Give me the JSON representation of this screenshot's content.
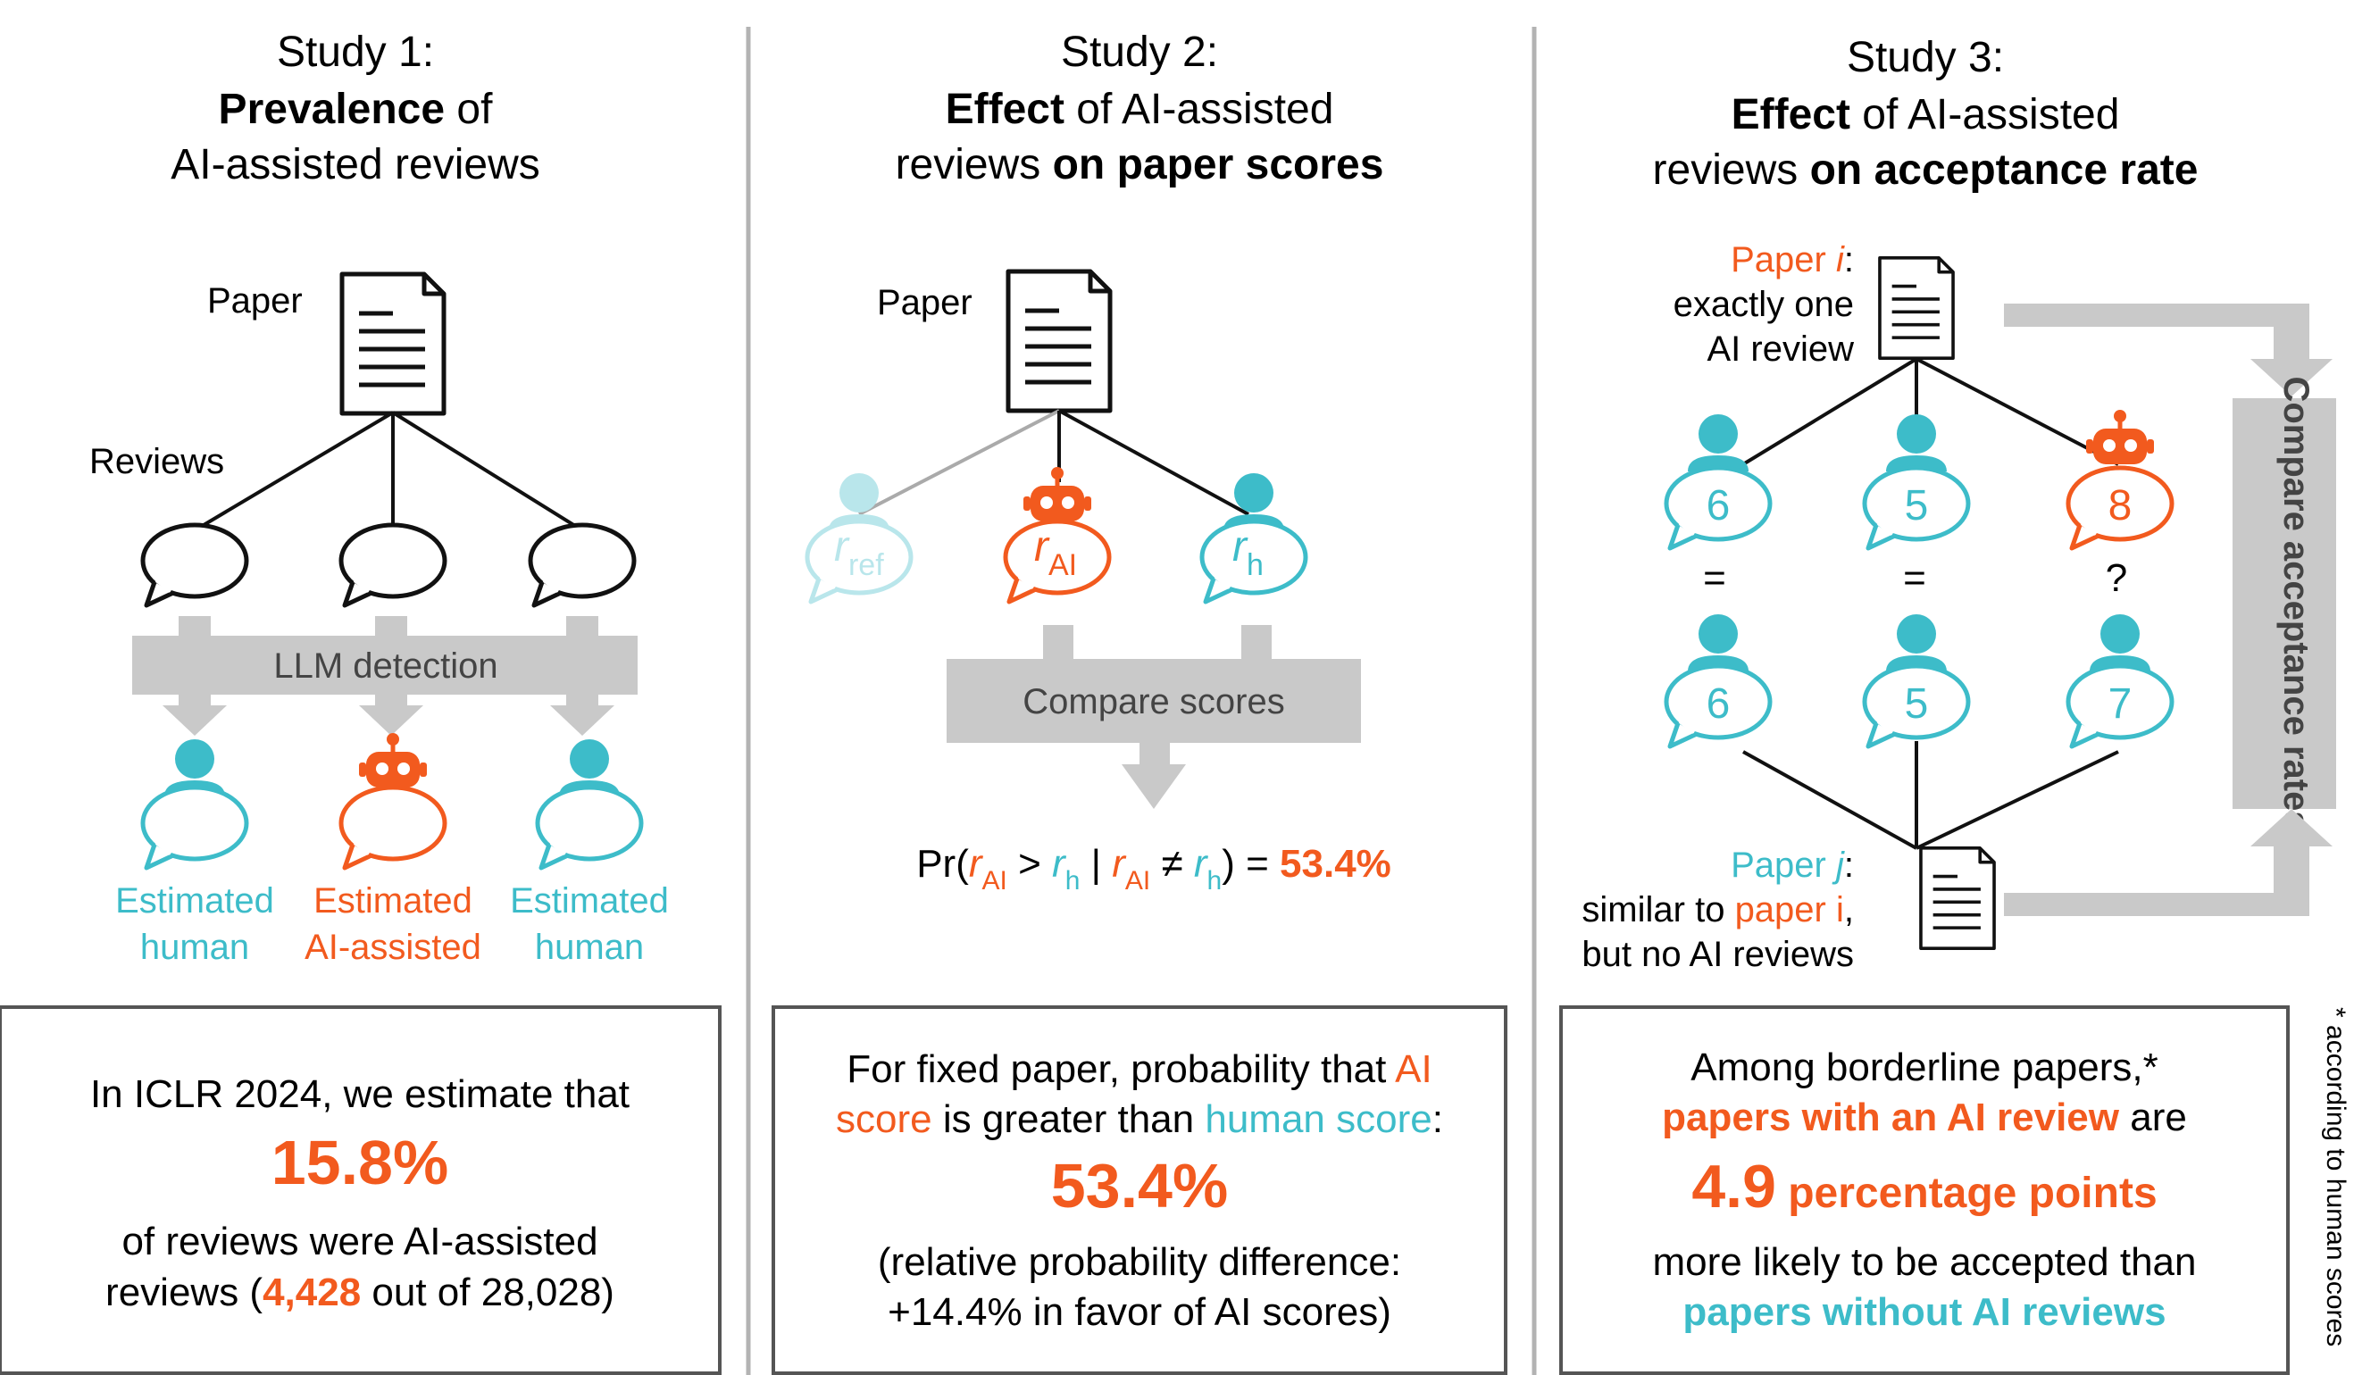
{
  "colors": {
    "teal": "#3dbcc9",
    "orange": "#f25a1e",
    "gray_box": "#c9c9c9",
    "divider": "#b3b3b3",
    "ref_faded": "#b9e6eb"
  },
  "icons": [
    "document-icon",
    "speech-bubble-icon",
    "person-icon",
    "robot-icon",
    "arrow-down-icon"
  ],
  "study1": {
    "heading": "Study 1:",
    "title_bold": "Prevalence",
    "title_rest": " of",
    "title_line3": "AI-assisted reviews",
    "paper_label": "Paper",
    "reviews_label": "Reviews",
    "detection_label": "LLM detection",
    "result_labels": [
      {
        "line1": "Estimated",
        "line2": "human"
      },
      {
        "line1": "Estimated",
        "line2": "AI-assisted"
      },
      {
        "line1": "Estimated",
        "line2": "human"
      }
    ],
    "box_line1": "In ICLR 2024, we estimate that",
    "box_stat": "15.8%",
    "box_line3": "of reviews were AI-assisted",
    "box_line4_pre": "reviews (",
    "box_line4_num": "4,428",
    "box_line4_post": " out of 28,028)"
  },
  "study2": {
    "heading": "Study 2:",
    "title_bold": "Effect",
    "title_rest": " of AI-assisted",
    "title_line3_pre": "reviews ",
    "title_line3_bold": "on paper scores",
    "paper_label": "Paper",
    "r_letter": "r",
    "sub_ref": "ref",
    "sub_ai": "AI",
    "sub_h": "h",
    "compare_label": "Compare scores",
    "formula_pr": "Pr(",
    "formula_gt": " > ",
    "formula_bar": " | ",
    "formula_neq": " ≠ ",
    "formula_close": ") = ",
    "formula_value": "53.4%",
    "box_line1_pre": "For fixed paper, probability that ",
    "box_line1_ai": "AI",
    "box_line2_score": "score",
    "box_line2_mid": " is greater than ",
    "box_line2_human": "human score",
    "box_line2_colon": ":",
    "box_stat": "53.4%",
    "box_line4": "(relative probability difference:",
    "box_line5": "+14.4% in favor of AI scores)"
  },
  "study3": {
    "heading": "Study 3:",
    "title_bold": "Effect",
    "title_rest": " of AI-assisted",
    "title_line3_pre": "reviews ",
    "title_line3_bold": "on acceptance rate",
    "paper_i_label": "Paper ",
    "paper_i_var": "i",
    "paper_i_colon": ":",
    "paper_i_line2": "exactly one",
    "paper_i_line3": "AI review",
    "top_scores": [
      "6",
      "5",
      "8"
    ],
    "bottom_scores": [
      "6",
      "5",
      "7"
    ],
    "relations": [
      "=",
      "=",
      "?"
    ],
    "compare_label": "Compare acceptance rates",
    "paper_j_label": "Paper ",
    "paper_j_var": "j",
    "paper_j_colon": ":",
    "paper_j_line2_pre": "similar to ",
    "paper_j_line2_hl": "paper i",
    "paper_j_line2_post": ",",
    "paper_j_line3": "but no AI reviews",
    "box_line1": "Among borderline papers,*",
    "box_line2_hl": "papers with an AI review",
    "box_line2_rest": " are",
    "box_stat_num": "4.9",
    "box_stat_unit": " percentage points",
    "box_line4": "more likely to be accepted than",
    "box_line5": "papers without AI reviews",
    "footnote": "* according to human scores"
  }
}
